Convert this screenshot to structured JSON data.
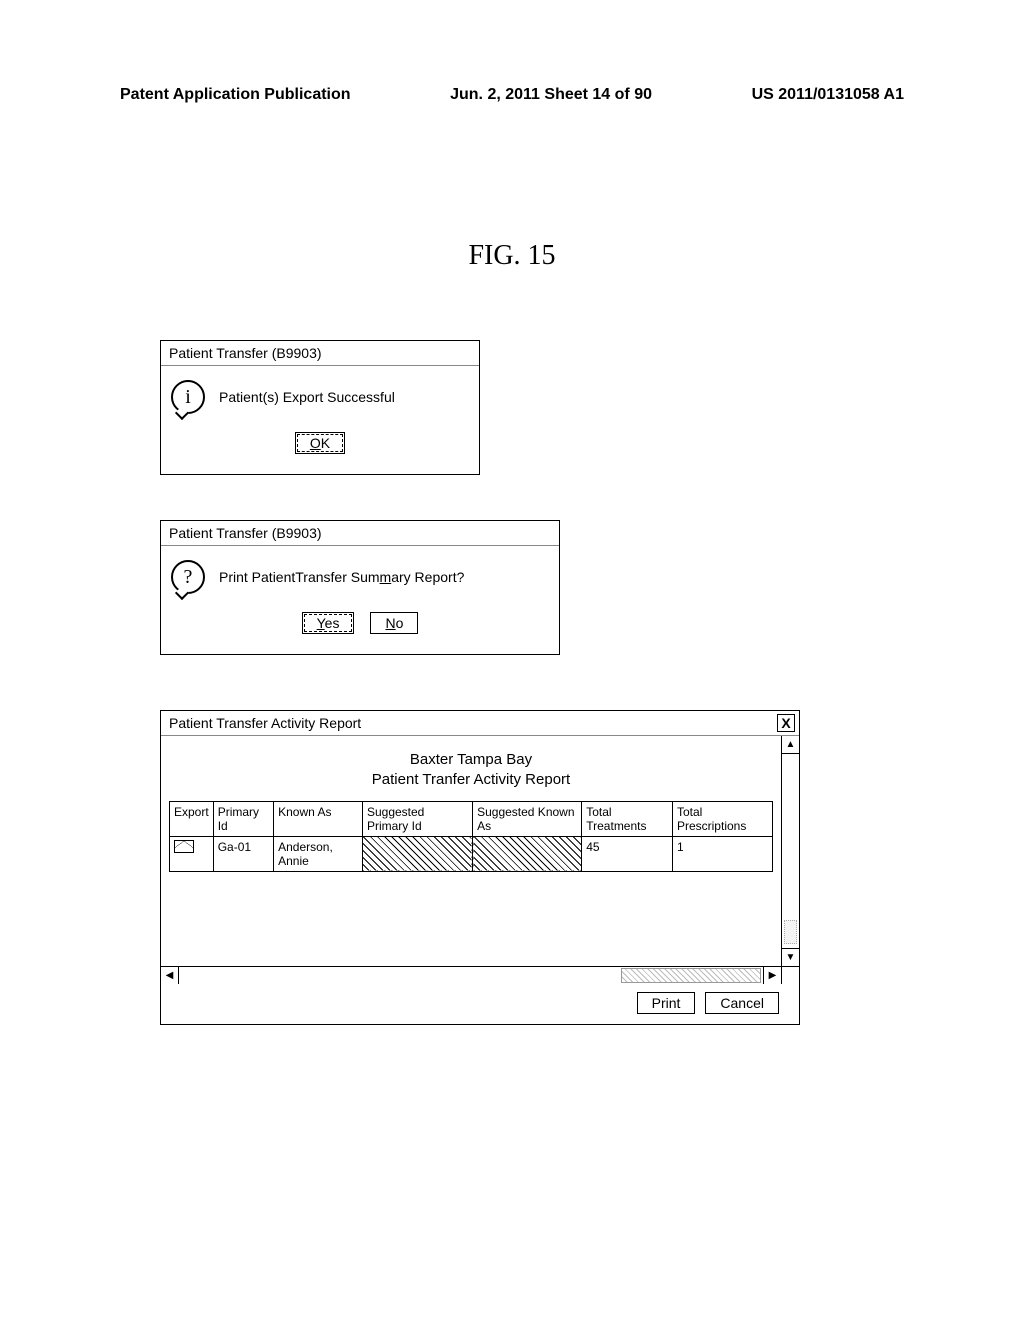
{
  "page_header": {
    "left": "Patent Application Publication",
    "center": "Jun. 2, 2011  Sheet 14 of 90",
    "right": "US 2011/0131058 A1"
  },
  "figure_label": "FIG. 15",
  "dialog1": {
    "title": "Patient Transfer (B9903)",
    "message": "Patient(s) Export Successful",
    "ok_label": "OK"
  },
  "dialog2": {
    "title": "Patient Transfer (B9903)",
    "message": "Print PatientTransfer Summary Report?",
    "yes_label": "Yes",
    "no_label": "No"
  },
  "report": {
    "title": "Patient Transfer Activity Report",
    "heading_line1": "Baxter Tampa Bay",
    "heading_line2": "Patient Tranfer Activity Report",
    "columns": [
      "Export",
      "Primary Id",
      "Known As",
      "Suggested Primary Id",
      "Suggested Known As",
      "Total Treatments",
      "Total Prescriptions"
    ],
    "row": {
      "primary_id": "Ga-01",
      "known_as": "Anderson, Annie",
      "total_treatments": "45",
      "total_prescriptions": "1"
    },
    "print_label": "Print",
    "cancel_label": "Cancel",
    "close_label": "X"
  }
}
